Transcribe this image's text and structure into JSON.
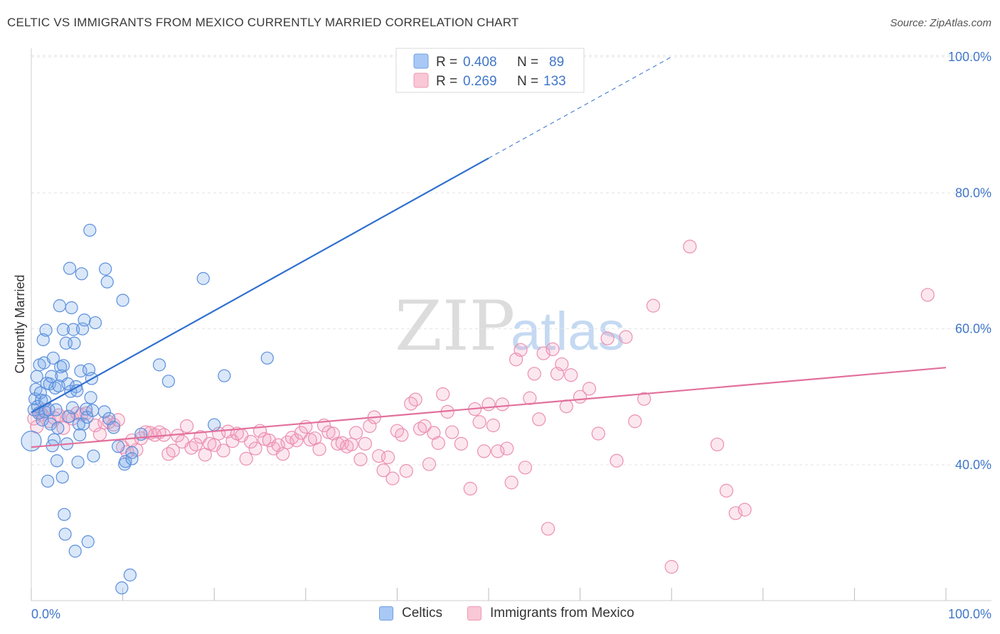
{
  "header": {
    "title": "CELTIC VS IMMIGRANTS FROM MEXICO CURRENTLY MARRIED CORRELATION CHART",
    "source": "Source: ZipAtlas.com"
  },
  "watermark": {
    "zip": "ZIP",
    "atlas": "atlas"
  },
  "legend_box": {
    "rows": [
      {
        "r_label": "R =",
        "r_value": "0.408",
        "n_label": "N =",
        "n_value": "89",
        "color": "#a9c8f5"
      },
      {
        "r_label": "R =",
        "r_value": "0.269",
        "n_label": "N =",
        "n_value": "133",
        "color": "#f7b8cc"
      }
    ]
  },
  "bottom_legend": [
    {
      "label": "Celtics",
      "color": "#a9c8f5",
      "border": "#6f9fe0"
    },
    {
      "label": "Immigrants from Mexico",
      "color": "#f9c7d6",
      "border": "#ee9ab5"
    }
  ],
  "colors": {
    "celtic_fill": "rgba(120,170,235,0.28)",
    "celtic_stroke": "#5b8fdc",
    "celtic_line": "#2f6fcf",
    "mexico_fill": "rgba(245,160,190,0.25)",
    "mexico_stroke": "#eb8fb0",
    "mexico_line": "#e2709b",
    "tick_label": "#3f76c9",
    "grid": "#e3e3e3"
  },
  "chart_data": {
    "type": "scatter",
    "title": "CELTIC VS IMMIGRANTS FROM MEXICO CURRENTLY MARRIED CORRELATION CHART",
    "xlabel": "",
    "ylabel": "Currently Married",
    "xlim": [
      0,
      100
    ],
    "ylim": [
      19,
      103
    ],
    "x_tick_labels": [
      "0.0%",
      "100.0%"
    ],
    "y_ticks": [
      40,
      60,
      80,
      100
    ],
    "y_tick_labels": [
      "40.0%",
      "60.0%",
      "80.0%",
      "100.0%"
    ],
    "grid": true,
    "legend_position": "top-center",
    "series": [
      {
        "name": "Celtics",
        "R": 0.408,
        "N": 89,
        "trend": {
          "x": [
            0,
            50
          ],
          "y": [
            47.7,
            85.1
          ],
          "dashed_to": {
            "x": 70,
            "y": 100
          }
        },
        "points": [
          [
            0.0,
            43.5
          ],
          [
            0.3,
            48.1
          ],
          [
            0.4,
            49.7
          ],
          [
            0.5,
            51.1
          ],
          [
            0.6,
            53.0
          ],
          [
            0.7,
            48.6
          ],
          [
            0.8,
            47.6
          ],
          [
            0.9,
            54.7
          ],
          [
            1.0,
            50.6
          ],
          [
            1.1,
            49.5
          ],
          [
            1.2,
            46.6
          ],
          [
            1.3,
            58.4
          ],
          [
            1.4,
            55.0
          ],
          [
            1.5,
            49.4
          ],
          [
            1.5,
            47.8
          ],
          [
            1.6,
            59.8
          ],
          [
            1.7,
            52.0
          ],
          [
            1.8,
            37.6
          ],
          [
            1.9,
            48.1
          ],
          [
            2.0,
            51.9
          ],
          [
            2.1,
            46.0
          ],
          [
            2.2,
            53.0
          ],
          [
            2.3,
            42.8
          ],
          [
            2.4,
            55.7
          ],
          [
            2.5,
            43.7
          ],
          [
            2.6,
            51.3
          ],
          [
            2.7,
            48.1
          ],
          [
            2.8,
            40.6
          ],
          [
            2.9,
            45.4
          ],
          [
            3.0,
            51.6
          ],
          [
            3.1,
            63.4
          ],
          [
            3.2,
            54.4
          ],
          [
            3.3,
            53.1
          ],
          [
            3.4,
            38.2
          ],
          [
            3.5,
            54.6
          ],
          [
            3.5,
            59.9
          ],
          [
            3.6,
            32.7
          ],
          [
            3.7,
            29.8
          ],
          [
            3.8,
            57.9
          ],
          [
            3.9,
            43.1
          ],
          [
            4.0,
            51.9
          ],
          [
            4.1,
            47.1
          ],
          [
            4.2,
            68.9
          ],
          [
            4.3,
            50.8
          ],
          [
            4.4,
            63.1
          ],
          [
            4.5,
            48.4
          ],
          [
            4.6,
            59.9
          ],
          [
            4.7,
            57.9
          ],
          [
            4.8,
            27.3
          ],
          [
            4.9,
            51.5
          ],
          [
            5.0,
            50.9
          ],
          [
            5.1,
            40.4
          ],
          [
            5.2,
            46.0
          ],
          [
            5.3,
            44.4
          ],
          [
            5.4,
            53.8
          ],
          [
            5.5,
            68.1
          ],
          [
            5.6,
            60.0
          ],
          [
            5.7,
            46.0
          ],
          [
            5.8,
            61.3
          ],
          [
            6.0,
            48.2
          ],
          [
            6.1,
            47.0
          ],
          [
            6.2,
            28.7
          ],
          [
            6.3,
            54.0
          ],
          [
            6.4,
            74.5
          ],
          [
            6.5,
            49.9
          ],
          [
            6.6,
            52.7
          ],
          [
            6.7,
            48.0
          ],
          [
            6.8,
            41.3
          ],
          [
            7.0,
            60.9
          ],
          [
            8.0,
            47.8
          ],
          [
            8.1,
            68.8
          ],
          [
            8.3,
            66.9
          ],
          [
            8.5,
            46.8
          ],
          [
            9.0,
            45.5
          ],
          [
            9.5,
            42.7
          ],
          [
            9.9,
            21.9
          ],
          [
            10.0,
            64.2
          ],
          [
            10.2,
            40.1
          ],
          [
            10.3,
            40.5
          ],
          [
            11.0,
            41.8
          ],
          [
            10.8,
            23.8
          ],
          [
            11.0,
            40.9
          ],
          [
            12.0,
            44.5
          ],
          [
            14.0,
            54.7
          ],
          [
            15.0,
            52.3
          ],
          [
            18.8,
            67.4
          ],
          [
            20.0,
            45.9
          ],
          [
            21.1,
            53.1
          ],
          [
            25.8,
            55.7
          ]
        ]
      },
      {
        "name": "Immigrants from Mexico",
        "R": 0.269,
        "N": 133,
        "trend": {
          "x": [
            0,
            100
          ],
          "y": [
            42.6,
            54.3
          ]
        },
        "points": [
          [
            0.3,
            46.8
          ],
          [
            0.6,
            45.6
          ],
          [
            1.0,
            47.7
          ],
          [
            1.2,
            47.4
          ],
          [
            1.5,
            48.1
          ],
          [
            2.0,
            46.4
          ],
          [
            2.5,
            46.9
          ],
          [
            3.0,
            47.3
          ],
          [
            3.5,
            45.4
          ],
          [
            4.0,
            47.1
          ],
          [
            4.5,
            46.8
          ],
          [
            5.0,
            47.6
          ],
          [
            5.5,
            47.4
          ],
          [
            6.0,
            47.6
          ],
          [
            7.0,
            45.8
          ],
          [
            7.5,
            44.5
          ],
          [
            8.0,
            46.2
          ],
          [
            8.5,
            46.3
          ],
          [
            9.0,
            45.9
          ],
          [
            9.5,
            46.6
          ],
          [
            10.0,
            42.6
          ],
          [
            10.5,
            41.9
          ],
          [
            11.0,
            43.6
          ],
          [
            11.5,
            42.2
          ],
          [
            12.0,
            43.9
          ],
          [
            12.5,
            44.8
          ],
          [
            13.0,
            44.7
          ],
          [
            13.5,
            44.4
          ],
          [
            14.0,
            44.8
          ],
          [
            14.5,
            44.4
          ],
          [
            15.0,
            41.6
          ],
          [
            15.5,
            42.1
          ],
          [
            16.0,
            44.3
          ],
          [
            16.5,
            43.4
          ],
          [
            17.0,
            45.7
          ],
          [
            17.5,
            42.5
          ],
          [
            18.0,
            43.0
          ],
          [
            18.5,
            44.1
          ],
          [
            19.0,
            41.5
          ],
          [
            19.5,
            43.1
          ],
          [
            20.0,
            42.9
          ],
          [
            20.5,
            44.6
          ],
          [
            21.0,
            42.1
          ],
          [
            21.5,
            44.9
          ],
          [
            22.0,
            43.5
          ],
          [
            22.5,
            44.6
          ],
          [
            23.0,
            44.3
          ],
          [
            23.5,
            40.9
          ],
          [
            24.0,
            43.4
          ],
          [
            24.5,
            42.4
          ],
          [
            25.0,
            45.0
          ],
          [
            25.5,
            43.8
          ],
          [
            26.0,
            43.6
          ],
          [
            26.5,
            42.4
          ],
          [
            27.0,
            42.9
          ],
          [
            27.5,
            41.6
          ],
          [
            28.0,
            43.3
          ],
          [
            28.5,
            44.0
          ],
          [
            29.0,
            43.6
          ],
          [
            29.5,
            44.7
          ],
          [
            30.0,
            45.6
          ],
          [
            30.5,
            43.7
          ],
          [
            31.0,
            43.9
          ],
          [
            31.5,
            42.3
          ],
          [
            32.0,
            45.8
          ],
          [
            32.5,
            44.8
          ],
          [
            33.0,
            44.6
          ],
          [
            33.5,
            43.1
          ],
          [
            34.0,
            43.2
          ],
          [
            34.5,
            42.7
          ],
          [
            35.0,
            43.0
          ],
          [
            35.5,
            44.7
          ],
          [
            36.0,
            40.8
          ],
          [
            36.5,
            43.1
          ],
          [
            37.0,
            45.7
          ],
          [
            37.5,
            47.0
          ],
          [
            38.0,
            41.3
          ],
          [
            38.5,
            39.2
          ],
          [
            39.0,
            41.1
          ],
          [
            39.5,
            38.0
          ],
          [
            40.0,
            45.0
          ],
          [
            40.5,
            44.4
          ],
          [
            41.0,
            39.1
          ],
          [
            41.5,
            49.0
          ],
          [
            42.0,
            49.6
          ],
          [
            42.5,
            45.3
          ],
          [
            43.0,
            45.7
          ],
          [
            43.5,
            40.1
          ],
          [
            44.0,
            44.7
          ],
          [
            44.5,
            43.2
          ],
          [
            45.0,
            50.4
          ],
          [
            45.5,
            47.8
          ],
          [
            46.0,
            44.8
          ],
          [
            47.0,
            43.1
          ],
          [
            48.0,
            36.5
          ],
          [
            48.5,
            48.2
          ],
          [
            49.0,
            46.3
          ],
          [
            49.5,
            42.0
          ],
          [
            50.0,
            48.9
          ],
          [
            50.5,
            45.8
          ],
          [
            51.0,
            42.0
          ],
          [
            51.5,
            48.9
          ],
          [
            52.0,
            42.4
          ],
          [
            52.5,
            37.4
          ],
          [
            53.0,
            55.5
          ],
          [
            53.5,
            56.9
          ],
          [
            54.0,
            39.6
          ],
          [
            54.5,
            49.8
          ],
          [
            55.0,
            53.4
          ],
          [
            55.5,
            46.7
          ],
          [
            56.0,
            56.4
          ],
          [
            56.5,
            30.6
          ],
          [
            57.0,
            57.0
          ],
          [
            57.5,
            53.4
          ],
          [
            58.0,
            54.8
          ],
          [
            58.5,
            48.6
          ],
          [
            59.0,
            53.2
          ],
          [
            60.0,
            50.0
          ],
          [
            61.0,
            51.2
          ],
          [
            62.0,
            44.6
          ],
          [
            63.0,
            58.6
          ],
          [
            64.0,
            40.6
          ],
          [
            65.0,
            58.8
          ],
          [
            66.0,
            46.4
          ],
          [
            67.0,
            49.7
          ],
          [
            68.0,
            63.4
          ],
          [
            70.0,
            25.0
          ],
          [
            72.0,
            72.1
          ],
          [
            75.0,
            43.0
          ],
          [
            76.0,
            36.2
          ],
          [
            77.0,
            32.9
          ],
          [
            78.0,
            33.4
          ],
          [
            98.0,
            65.0
          ]
        ]
      }
    ]
  }
}
